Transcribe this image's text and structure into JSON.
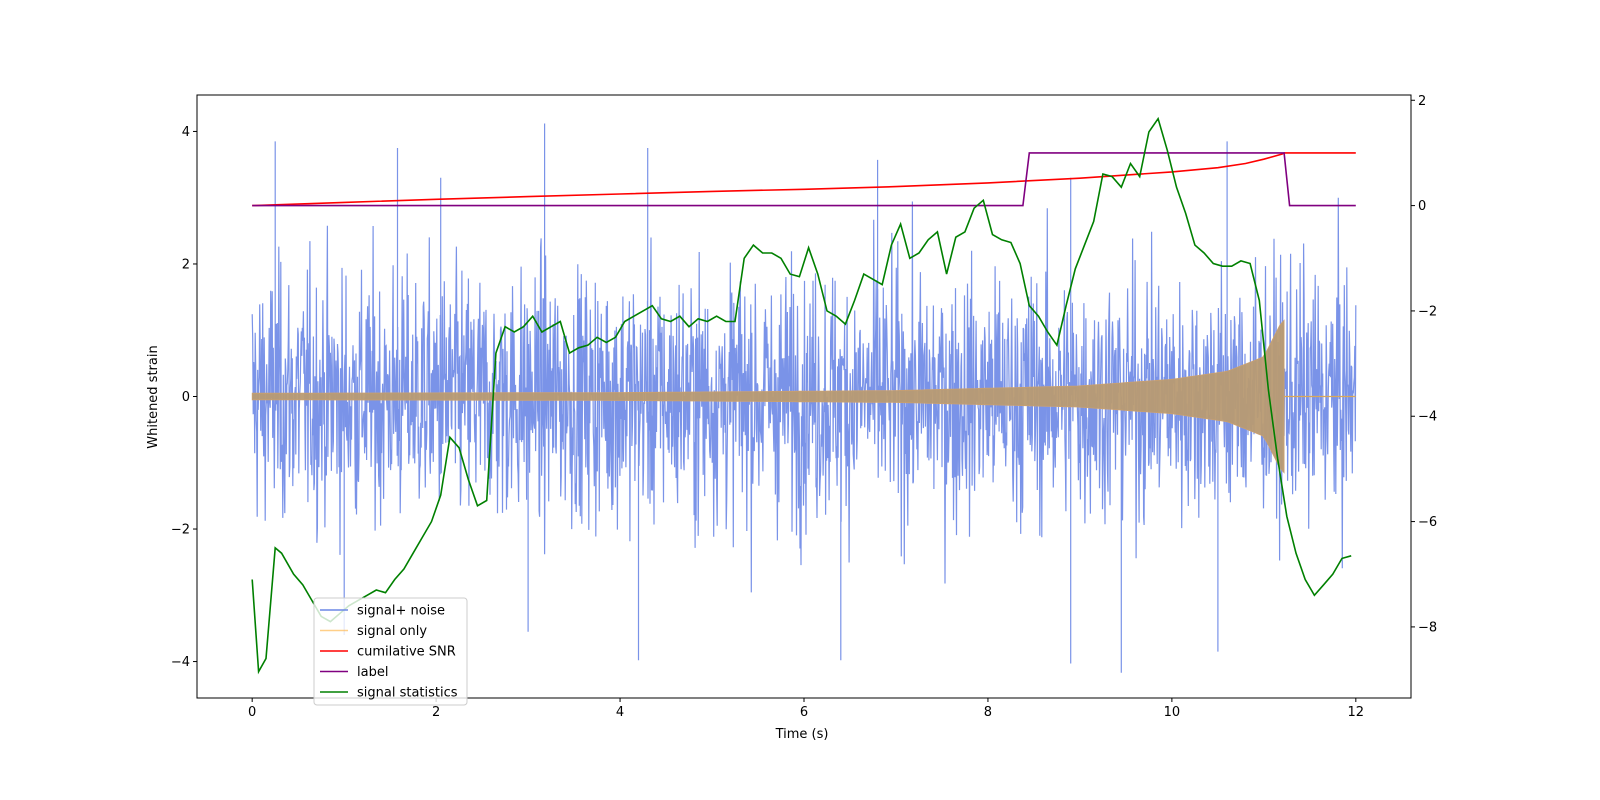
{
  "chart_data": {
    "type": "line",
    "xlabel": "Time (s)",
    "ylabel": "Whitened strain",
    "y2label": "",
    "xlim": [
      -0.6,
      12.6
    ],
    "ylim": [
      -4.55,
      4.55
    ],
    "y2lim": [
      -9.35,
      2.1
    ],
    "xticks": [
      0,
      2,
      4,
      6,
      8,
      10,
      12
    ],
    "yticks": [
      -4,
      -2,
      0,
      2,
      4
    ],
    "y2ticks": [
      -8,
      -6,
      -4,
      -2,
      0,
      2
    ],
    "legend_position": "lower-left",
    "series": [
      {
        "name": "signal+ noise",
        "axis": "left",
        "color": "#6b87e6",
        "description_stats": {
          "t_start": 0,
          "t_end": 12,
          "typical_envelope": [
            -2.3,
            2.3
          ],
          "max": 4.12,
          "min": -4.17
        },
        "spikes": [
          {
            "x": 0.25,
            "y": 3.85
          },
          {
            "x": 1.58,
            "y": 3.75
          },
          {
            "x": 3.18,
            "y": 4.12
          },
          {
            "x": 4.3,
            "y": 3.75
          },
          {
            "x": 6.8,
            "y": 3.57
          },
          {
            "x": 10.6,
            "y": 3.85
          },
          {
            "x": 2.05,
            "y": 3.3
          },
          {
            "x": 8.9,
            "y": 3.3
          },
          {
            "x": 3.0,
            "y": -3.55
          },
          {
            "x": 4.2,
            "y": -3.98
          },
          {
            "x": 6.4,
            "y": -3.98
          },
          {
            "x": 8.9,
            "y": -4.03
          },
          {
            "x": 9.45,
            "y": -4.17
          },
          {
            "x": 10.5,
            "y": -3.85
          },
          {
            "x": 1.0,
            "y": -3.6
          }
        ]
      },
      {
        "name": "signal only",
        "axis": "left",
        "color": "#ffbb55",
        "amplitude_points": [
          [
            0,
            0.05
          ],
          [
            4,
            0.06
          ],
          [
            7,
            0.09
          ],
          [
            9,
            0.16
          ],
          [
            10,
            0.26
          ],
          [
            10.6,
            0.38
          ],
          [
            11.0,
            0.6
          ],
          [
            11.2,
            1.15
          ]
        ],
        "merger_time": 11.22
      },
      {
        "name": "cumilative SNR",
        "axis": "right",
        "color": "#ff0000",
        "x": [
          0,
          1,
          2,
          3,
          4,
          5,
          6,
          7,
          8,
          9,
          10,
          10.5,
          10.8,
          11.0,
          11.1,
          11.2,
          11.22,
          12
        ],
        "y": [
          0.0,
          0.06,
          0.12,
          0.17,
          0.22,
          0.27,
          0.31,
          0.36,
          0.43,
          0.52,
          0.64,
          0.72,
          0.8,
          0.88,
          0.93,
          0.98,
          1.0,
          1.0
        ]
      },
      {
        "name": "label",
        "axis": "right",
        "color": "#800080",
        "x": [
          0,
          8.38,
          8.45,
          11.22,
          11.28,
          12
        ],
        "y": [
          0,
          0,
          1,
          1,
          0,
          0
        ]
      },
      {
        "name": "signal statistics",
        "axis": "right",
        "color": "#008000",
        "x": [
          0,
          0.07,
          0.15,
          0.25,
          0.32,
          0.45,
          0.55,
          0.65,
          0.75,
          0.85,
          0.95,
          1.05,
          1.15,
          1.25,
          1.35,
          1.45,
          1.55,
          1.65,
          1.75,
          1.85,
          1.95,
          2.05,
          2.15,
          2.25,
          2.35,
          2.45,
          2.55,
          2.65,
          2.75,
          2.85,
          2.95,
          3.05,
          3.15,
          3.25,
          3.35,
          3.45,
          3.55,
          3.65,
          3.75,
          3.85,
          3.95,
          4.05,
          4.15,
          4.25,
          4.35,
          4.45,
          4.55,
          4.65,
          4.75,
          4.85,
          4.95,
          5.05,
          5.15,
          5.25,
          5.35,
          5.45,
          5.55,
          5.65,
          5.75,
          5.85,
          5.95,
          6.05,
          6.15,
          6.25,
          6.35,
          6.45,
          6.55,
          6.65,
          6.75,
          6.85,
          6.95,
          7.05,
          7.15,
          7.25,
          7.35,
          7.45,
          7.55,
          7.65,
          7.75,
          7.85,
          7.95,
          8.05,
          8.15,
          8.25,
          8.35,
          8.45,
          8.55,
          8.65,
          8.75,
          8.85,
          8.95,
          9.05,
          9.15,
          9.25,
          9.35,
          9.45,
          9.55,
          9.65,
          9.75,
          9.85,
          9.95,
          10.05,
          10.15,
          10.25,
          10.35,
          10.45,
          10.55,
          10.65,
          10.75,
          10.85,
          10.95,
          11.05,
          11.15,
          11.25,
          11.35,
          11.45,
          11.55,
          11.65,
          11.75,
          11.85,
          11.95
        ],
        "y": [
          -7.1,
          -8.85,
          -8.6,
          -6.5,
          -6.6,
          -7.0,
          -7.2,
          -7.5,
          -7.8,
          -7.9,
          -7.75,
          -7.6,
          -7.5,
          -7.4,
          -7.3,
          -7.35,
          -7.1,
          -6.9,
          -6.6,
          -6.3,
          -6.0,
          -5.5,
          -4.4,
          -4.6,
          -5.2,
          -5.7,
          -5.6,
          -2.8,
          -2.3,
          -2.4,
          -2.3,
          -2.1,
          -2.4,
          -2.3,
          -2.2,
          -2.8,
          -2.7,
          -2.65,
          -2.5,
          -2.6,
          -2.5,
          -2.2,
          -2.1,
          -2.0,
          -1.9,
          -2.15,
          -2.2,
          -2.1,
          -2.3,
          -2.15,
          -2.2,
          -2.1,
          -2.2,
          -2.2,
          -1.0,
          -0.75,
          -0.9,
          -0.9,
          -1.0,
          -1.3,
          -1.35,
          -0.8,
          -1.3,
          -2.0,
          -2.1,
          -2.25,
          -1.8,
          -1.3,
          -1.4,
          -1.5,
          -0.75,
          -0.35,
          -1.0,
          -0.9,
          -0.65,
          -0.5,
          -1.3,
          -0.6,
          -0.5,
          -0.05,
          0.1,
          -0.55,
          -0.65,
          -0.7,
          -1.1,
          -1.9,
          -2.1,
          -2.4,
          -2.65,
          -1.9,
          -1.2,
          -0.75,
          -0.3,
          0.6,
          0.55,
          0.35,
          0.8,
          0.55,
          1.4,
          1.65,
          1.05,
          0.35,
          -0.15,
          -0.75,
          -0.9,
          -1.1,
          -1.15,
          -1.15,
          -1.05,
          -1.1,
          -1.8,
          -3.5,
          -4.8,
          -5.9,
          -6.6,
          -7.1,
          -7.4,
          -7.2,
          -7.0,
          -6.7,
          -6.65
        ]
      }
    ]
  }
}
